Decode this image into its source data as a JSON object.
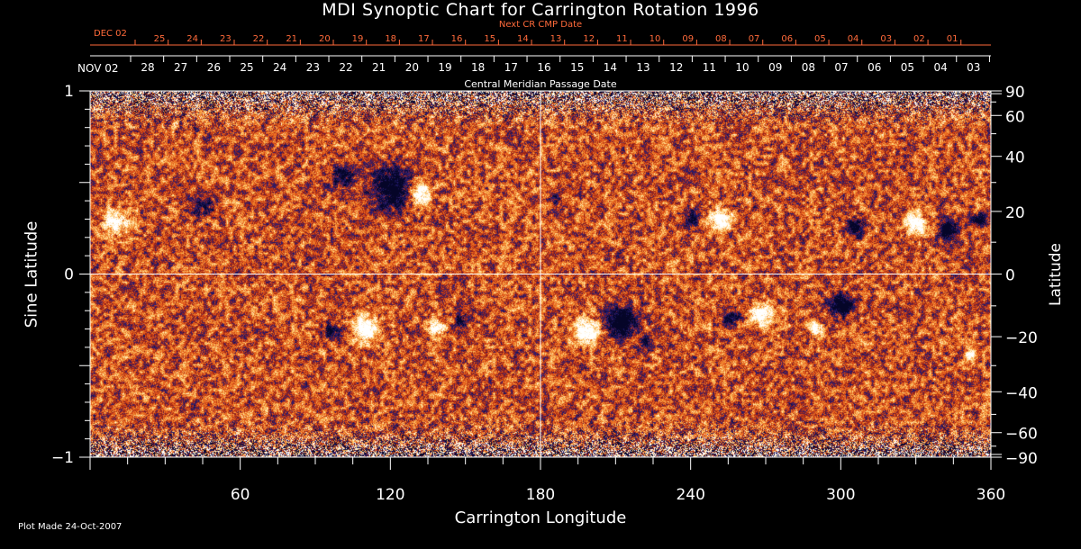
{
  "chart_data": {
    "type": "heatmap",
    "title": "MDI Synoptic Chart for Carrington Rotation 1996",
    "xlabel": "Carrington Longitude",
    "ylabel_left": "Sine Latitude",
    "ylabel_right": "Latitude",
    "top_axis_label": "Central Meridian Passage Date",
    "next_cr_label": "Next CR CMP Date",
    "xlim": [
      0,
      360
    ],
    "ylim": [
      -1,
      1
    ],
    "x_ticks": [
      60,
      120,
      180,
      240,
      300,
      360
    ],
    "y_left_ticks": [
      {
        "value": 1,
        "label": "1"
      },
      {
        "value": 0,
        "label": "0"
      },
      {
        "value": -1,
        "label": "−1"
      }
    ],
    "y_right_ticks": [
      {
        "deg": 90,
        "label": "90"
      },
      {
        "deg": 60,
        "label": "60"
      },
      {
        "deg": 40,
        "label": "40"
      },
      {
        "deg": 20,
        "label": "20"
      },
      {
        "deg": 0,
        "label": "0"
      },
      {
        "deg": -20,
        "label": "−20"
      },
      {
        "deg": -40,
        "label": "−40"
      },
      {
        "deg": -60,
        "label": "−60"
      },
      {
        "deg": -90,
        "label": "−90"
      }
    ],
    "top_dates_start": "NOV 02",
    "top_dates": [
      "28",
      "27",
      "26",
      "25",
      "24",
      "23",
      "22",
      "21",
      "20",
      "19",
      "18",
      "17",
      "16",
      "15",
      "14",
      "13",
      "12",
      "11",
      "10",
      "09",
      "08",
      "07",
      "06",
      "05",
      "04",
      "03"
    ],
    "red_dates_start": "DEC 02",
    "red_dates": [
      "25",
      "24",
      "23",
      "22",
      "21",
      "20",
      "19",
      "18",
      "17",
      "16",
      "15",
      "14",
      "13",
      "12",
      "11",
      "10",
      "09",
      "08",
      "07",
      "06",
      "05",
      "04",
      "03",
      "02",
      "01"
    ],
    "plot_made": "Plot Made 24-Oct-2007",
    "colors": {
      "background": "#000000",
      "field_neutral": "#e0501a",
      "positive": "#ffffff",
      "negative": "#0a0a40",
      "red_text": "#ff6a3a",
      "axes": "#ffffff"
    },
    "active_regions": [
      {
        "lon": 120,
        "sinlat": 0.47,
        "polarity": "negative",
        "strength": 1.0,
        "size": 0.18
      },
      {
        "lon": 132,
        "sinlat": 0.44,
        "polarity": "positive",
        "strength": 0.9,
        "size": 0.1
      },
      {
        "lon": 100,
        "sinlat": 0.54,
        "polarity": "negative",
        "strength": 0.6,
        "size": 0.12
      },
      {
        "lon": 10,
        "sinlat": 0.28,
        "polarity": "positive",
        "strength": 0.8,
        "size": 0.12
      },
      {
        "lon": 45,
        "sinlat": 0.38,
        "polarity": "negative",
        "strength": 0.5,
        "size": 0.1
      },
      {
        "lon": 110,
        "sinlat": -0.3,
        "polarity": "positive",
        "strength": 1.0,
        "size": 0.12
      },
      {
        "lon": 96,
        "sinlat": -0.31,
        "polarity": "negative",
        "strength": 0.6,
        "size": 0.08
      },
      {
        "lon": 138,
        "sinlat": -0.29,
        "polarity": "positive",
        "strength": 0.8,
        "size": 0.08
      },
      {
        "lon": 148,
        "sinlat": -0.25,
        "polarity": "negative",
        "strength": 0.7,
        "size": 0.06
      },
      {
        "lon": 198,
        "sinlat": -0.31,
        "polarity": "positive",
        "strength": 1.0,
        "size": 0.12
      },
      {
        "lon": 212,
        "sinlat": -0.26,
        "polarity": "negative",
        "strength": 1.0,
        "size": 0.14
      },
      {
        "lon": 268,
        "sinlat": -0.22,
        "polarity": "positive",
        "strength": 1.0,
        "size": 0.1
      },
      {
        "lon": 256,
        "sinlat": -0.24,
        "polarity": "negative",
        "strength": 0.6,
        "size": 0.08
      },
      {
        "lon": 300,
        "sinlat": -0.17,
        "polarity": "negative",
        "strength": 1.0,
        "size": 0.1
      },
      {
        "lon": 290,
        "sinlat": -0.3,
        "polarity": "positive",
        "strength": 0.8,
        "size": 0.06
      },
      {
        "lon": 252,
        "sinlat": 0.3,
        "polarity": "positive",
        "strength": 0.9,
        "size": 0.1
      },
      {
        "lon": 240,
        "sinlat": 0.3,
        "polarity": "negative",
        "strength": 0.6,
        "size": 0.08
      },
      {
        "lon": 330,
        "sinlat": 0.27,
        "polarity": "positive",
        "strength": 0.9,
        "size": 0.1
      },
      {
        "lon": 343,
        "sinlat": 0.24,
        "polarity": "negative",
        "strength": 1.0,
        "size": 0.09
      },
      {
        "lon": 355,
        "sinlat": 0.3,
        "polarity": "negative",
        "strength": 1.0,
        "size": 0.06
      },
      {
        "lon": 306,
        "sinlat": 0.26,
        "polarity": "negative",
        "strength": 0.7,
        "size": 0.08
      },
      {
        "lon": 186,
        "sinlat": 0.41,
        "polarity": "negative",
        "strength": 0.6,
        "size": 0.06
      },
      {
        "lon": 352,
        "sinlat": -0.44,
        "polarity": "positive",
        "strength": 0.8,
        "size": 0.05
      },
      {
        "lon": 222,
        "sinlat": -0.38,
        "polarity": "negative",
        "strength": 0.6,
        "size": 0.06
      }
    ]
  }
}
